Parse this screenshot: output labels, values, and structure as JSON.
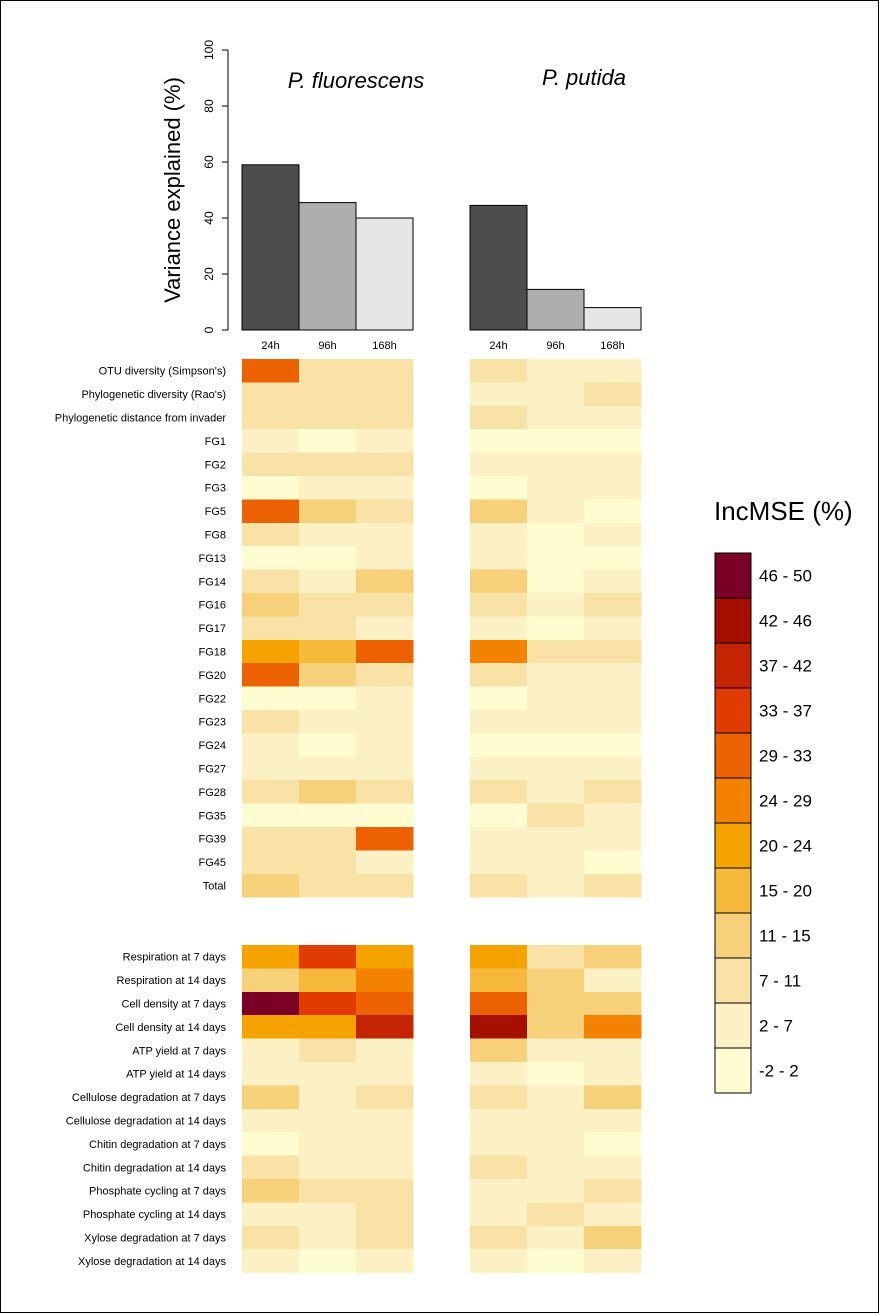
{
  "bar_panel": {
    "ylabel": "Variance explained (%)",
    "yticks": [
      "0",
      "20",
      "40",
      "60",
      "80",
      "100"
    ]
  },
  "legend": {
    "title": "IncMSE (%)",
    "bins": [
      {
        "label": "46 - 50",
        "color": "#7a0026"
      },
      {
        "label": "42 - 46",
        "color": "#a50f00"
      },
      {
        "label": "37 - 42",
        "color": "#c52400"
      },
      {
        "label": "33 - 37",
        "color": "#e03b00"
      },
      {
        "label": "29 - 33",
        "color": "#ec6200"
      },
      {
        "label": "24 - 29",
        "color": "#f38200"
      },
      {
        "label": "20 - 24",
        "color": "#f4a300"
      },
      {
        "label": "15 - 20",
        "color": "#f6b93b"
      },
      {
        "label": "11 - 15",
        "color": "#f7d07a"
      },
      {
        "label": "7 - 11",
        "color": "#f9e2a6"
      },
      {
        "label": "2 - 7",
        "color": "#fcf1c4"
      },
      {
        "label": "-2 - 2",
        "color": "#fffcd2"
      }
    ]
  },
  "chart_data": [
    {
      "type": "bar",
      "title": "P. fluorescens",
      "ylabel": "Variance explained (%)",
      "ylim": [
        0,
        100
      ],
      "categories": [
        "24h",
        "96h",
        "168h"
      ],
      "values": [
        59,
        45.5,
        40
      ],
      "colors": [
        "#4d4d4d",
        "#aeaeae",
        "#e6e6e6"
      ]
    },
    {
      "type": "bar",
      "title": "P. putida",
      "ylabel": "Variance explained (%)",
      "ylim": [
        0,
        100
      ],
      "categories": [
        "24h",
        "96h",
        "168h"
      ],
      "values": [
        44.5,
        14.5,
        8
      ],
      "colors": [
        "#4d4d4d",
        "#aeaeae",
        "#e6e6e6"
      ]
    },
    {
      "type": "heatmap",
      "value_units": "IncMSE (%)",
      "columns": [
        "24h",
        "96h",
        "168h"
      ],
      "group1_rows": [
        "OTU diversity (Simpson's)",
        "Phylogenetic diversity (Rao's)",
        "Phylogenetic distance from invader",
        "FG1",
        "FG2",
        "FG3",
        "FG5",
        "FG8",
        "FG13",
        "FG14",
        "FG16",
        "FG17",
        "FG18",
        "FG20",
        "FG22",
        "FG23",
        "FG24",
        "FG27",
        "FG28",
        "FG35",
        "FG39",
        "FG45",
        "Total"
      ],
      "group2_rows": [
        "Respiration at 7 days",
        "Respiration at 14 days",
        "Cell density at 7 days",
        "Cell density at 14 days",
        "ATP yield at 7 days",
        "ATP yield at 14 days",
        "Cellulose degradation at 7 days",
        "Cellulose degradation at 14 days",
        "Chitin degradation at 7 days",
        "Chitin degradation at 14 days",
        "Phosphate cycling at 7 days",
        "Phosphate cycling at 14 days",
        "Xylose degradation at 7 days",
        "Xylose degradation at 14 days"
      ],
      "panels": [
        {
          "name": "P. fluorescens",
          "group1_bins": [
            [
              7,
              2,
              2
            ],
            [
              2,
              2,
              2
            ],
            [
              2,
              2,
              2
            ],
            [
              1,
              0,
              1
            ],
            [
              2,
              2,
              2
            ],
            [
              0,
              1,
              1
            ],
            [
              7,
              3,
              2
            ],
            [
              2,
              1,
              1
            ],
            [
              0,
              0,
              1
            ],
            [
              2,
              1,
              3
            ],
            [
              3,
              2,
              2
            ],
            [
              2,
              2,
              1
            ],
            [
              5,
              4,
              7
            ],
            [
              7,
              3,
              2
            ],
            [
              0,
              0,
              1
            ],
            [
              2,
              1,
              1
            ],
            [
              1,
              0,
              1
            ],
            [
              1,
              1,
              1
            ],
            [
              2,
              3,
              2
            ],
            [
              0,
              0,
              0
            ],
            [
              2,
              2,
              7
            ],
            [
              2,
              2,
              1
            ],
            [
              3,
              2,
              2
            ]
          ],
          "group2_bins": [
            [
              5,
              8,
              5
            ],
            [
              3,
              4,
              6
            ],
            [
              11,
              8,
              7
            ],
            [
              5,
              5,
              9
            ],
            [
              1,
              2,
              1
            ],
            [
              1,
              1,
              1
            ],
            [
              3,
              1,
              2
            ],
            [
              1,
              1,
              1
            ],
            [
              0,
              1,
              1
            ],
            [
              2,
              1,
              1
            ],
            [
              3,
              2,
              2
            ],
            [
              1,
              1,
              2
            ],
            [
              2,
              1,
              2
            ],
            [
              1,
              0,
              1
            ]
          ]
        },
        {
          "name": "P. putida",
          "group1_bins": [
            [
              2,
              1,
              1
            ],
            [
              1,
              1,
              2
            ],
            [
              2,
              1,
              1
            ],
            [
              0,
              0,
              0
            ],
            [
              1,
              1,
              1
            ],
            [
              0,
              1,
              1
            ],
            [
              3,
              1,
              0
            ],
            [
              1,
              0,
              1
            ],
            [
              1,
              0,
              0
            ],
            [
              3,
              0,
              1
            ],
            [
              2,
              1,
              2
            ],
            [
              1,
              0,
              1
            ],
            [
              6,
              2,
              2
            ],
            [
              2,
              1,
              1
            ],
            [
              0,
              1,
              1
            ],
            [
              1,
              1,
              1
            ],
            [
              0,
              0,
              0
            ],
            [
              1,
              1,
              1
            ],
            [
              2,
              1,
              2
            ],
            [
              0,
              2,
              1
            ],
            [
              1,
              1,
              1
            ],
            [
              1,
              1,
              0
            ],
            [
              2,
              1,
              2
            ]
          ],
          "group2_bins": [
            [
              5,
              2,
              3
            ],
            [
              4,
              3,
              1
            ],
            [
              7,
              3,
              3
            ],
            [
              10,
              3,
              6
            ],
            [
              3,
              1,
              1
            ],
            [
              1,
              0,
              1
            ],
            [
              2,
              1,
              3
            ],
            [
              1,
              1,
              1
            ],
            [
              1,
              1,
              0
            ],
            [
              2,
              1,
              1
            ],
            [
              1,
              1,
              2
            ],
            [
              1,
              2,
              1
            ],
            [
              2,
              1,
              3
            ],
            [
              1,
              0,
              1
            ]
          ]
        }
      ]
    }
  ]
}
